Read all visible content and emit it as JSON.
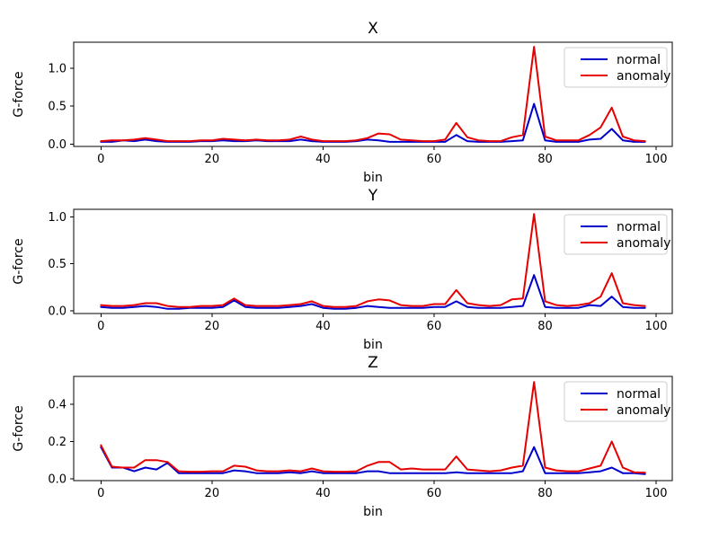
{
  "figure": {
    "background": "#ffffff",
    "text_color": "#000000",
    "spine_color": "#000000",
    "legend_border_color": "#cccccc",
    "legend_background": "#ffffff"
  },
  "chart_data": [
    {
      "type": "line",
      "title": "X",
      "xlabel": "bin",
      "ylabel": "G-force",
      "xlim": [
        -4.9,
        102.9
      ],
      "ylim": [
        -0.03,
        1.34
      ],
      "xticks": [
        0,
        20,
        40,
        60,
        80,
        100
      ],
      "xtick_labels": [
        "0",
        "20",
        "40",
        "60",
        "80",
        "100"
      ],
      "yticks": [
        0.0,
        0.5,
        1.0
      ],
      "ytick_labels": [
        "0.0",
        "0.5",
        "1.0"
      ],
      "legend_position": "upper right",
      "grid": false,
      "x": [
        0,
        2,
        4,
        6,
        8,
        10,
        12,
        14,
        16,
        18,
        20,
        22,
        24,
        26,
        28,
        30,
        32,
        34,
        36,
        38,
        40,
        42,
        44,
        46,
        48,
        50,
        52,
        54,
        56,
        58,
        60,
        62,
        64,
        66,
        68,
        70,
        72,
        74,
        76,
        78,
        80,
        82,
        84,
        86,
        88,
        90,
        92,
        94,
        96,
        98
      ],
      "series": [
        {
          "name": "normal",
          "color": "#0000cd",
          "values": [
            0.03,
            0.03,
            0.05,
            0.04,
            0.06,
            0.04,
            0.03,
            0.03,
            0.03,
            0.04,
            0.04,
            0.05,
            0.04,
            0.04,
            0.05,
            0.04,
            0.04,
            0.04,
            0.06,
            0.04,
            0.03,
            0.03,
            0.03,
            0.04,
            0.06,
            0.05,
            0.03,
            0.03,
            0.03,
            0.03,
            0.03,
            0.03,
            0.12,
            0.04,
            0.03,
            0.03,
            0.03,
            0.04,
            0.05,
            0.53,
            0.05,
            0.03,
            0.03,
            0.03,
            0.06,
            0.07,
            0.2,
            0.05,
            0.03,
            0.03
          ]
        },
        {
          "name": "anomaly",
          "color": "#e60000",
          "values": [
            0.04,
            0.05,
            0.05,
            0.06,
            0.08,
            0.06,
            0.04,
            0.04,
            0.04,
            0.05,
            0.05,
            0.07,
            0.06,
            0.05,
            0.06,
            0.05,
            0.05,
            0.06,
            0.1,
            0.06,
            0.04,
            0.04,
            0.04,
            0.05,
            0.08,
            0.14,
            0.13,
            0.06,
            0.05,
            0.04,
            0.04,
            0.06,
            0.28,
            0.09,
            0.05,
            0.04,
            0.04,
            0.09,
            0.12,
            1.28,
            0.1,
            0.05,
            0.05,
            0.05,
            0.12,
            0.22,
            0.48,
            0.1,
            0.05,
            0.04
          ]
        }
      ]
    },
    {
      "type": "line",
      "title": "Y",
      "xlabel": "bin",
      "ylabel": "G-force",
      "xlim": [
        -4.9,
        102.9
      ],
      "ylim": [
        -0.03,
        1.08
      ],
      "xticks": [
        0,
        20,
        40,
        60,
        80,
        100
      ],
      "xtick_labels": [
        "0",
        "20",
        "40",
        "60",
        "80",
        "100"
      ],
      "yticks": [
        0.0,
        0.5,
        1.0
      ],
      "ytick_labels": [
        "0.0",
        "0.5",
        "1.0"
      ],
      "legend_position": "upper right",
      "grid": false,
      "x": [
        0,
        2,
        4,
        6,
        8,
        10,
        12,
        14,
        16,
        18,
        20,
        22,
        24,
        26,
        28,
        30,
        32,
        34,
        36,
        38,
        40,
        42,
        44,
        46,
        48,
        50,
        52,
        54,
        56,
        58,
        60,
        62,
        64,
        66,
        68,
        70,
        72,
        74,
        76,
        78,
        80,
        82,
        84,
        86,
        88,
        90,
        92,
        94,
        96,
        98
      ],
      "series": [
        {
          "name": "normal",
          "color": "#0000cd",
          "values": [
            0.04,
            0.03,
            0.03,
            0.04,
            0.05,
            0.04,
            0.02,
            0.02,
            0.03,
            0.03,
            0.03,
            0.04,
            0.11,
            0.04,
            0.03,
            0.03,
            0.03,
            0.04,
            0.05,
            0.07,
            0.03,
            0.02,
            0.02,
            0.03,
            0.05,
            0.04,
            0.03,
            0.03,
            0.03,
            0.03,
            0.04,
            0.04,
            0.1,
            0.04,
            0.03,
            0.03,
            0.03,
            0.04,
            0.05,
            0.38,
            0.04,
            0.03,
            0.03,
            0.03,
            0.06,
            0.05,
            0.15,
            0.04,
            0.03,
            0.03
          ]
        },
        {
          "name": "anomaly",
          "color": "#e60000",
          "values": [
            0.06,
            0.05,
            0.05,
            0.06,
            0.08,
            0.08,
            0.05,
            0.04,
            0.04,
            0.05,
            0.05,
            0.06,
            0.13,
            0.06,
            0.05,
            0.05,
            0.05,
            0.06,
            0.07,
            0.1,
            0.05,
            0.04,
            0.04,
            0.05,
            0.1,
            0.12,
            0.11,
            0.06,
            0.05,
            0.05,
            0.07,
            0.07,
            0.22,
            0.08,
            0.06,
            0.05,
            0.06,
            0.12,
            0.13,
            1.03,
            0.1,
            0.06,
            0.05,
            0.06,
            0.08,
            0.15,
            0.4,
            0.08,
            0.06,
            0.05
          ]
        }
      ]
    },
    {
      "type": "line",
      "title": "Z",
      "xlabel": "bin",
      "ylabel": "G-force",
      "xlim": [
        -4.9,
        102.9
      ],
      "ylim": [
        -0.01,
        0.55
      ],
      "xticks": [
        0,
        20,
        40,
        60,
        80,
        100
      ],
      "xtick_labels": [
        "0",
        "20",
        "40",
        "60",
        "80",
        "100"
      ],
      "yticks": [
        0.0,
        0.2,
        0.4
      ],
      "ytick_labels": [
        "0.0",
        "0.2",
        "0.4"
      ],
      "legend_position": "upper right",
      "grid": false,
      "x": [
        0,
        2,
        4,
        6,
        8,
        10,
        12,
        14,
        16,
        18,
        20,
        22,
        24,
        26,
        28,
        30,
        32,
        34,
        36,
        38,
        40,
        42,
        44,
        46,
        48,
        50,
        52,
        54,
        56,
        58,
        60,
        62,
        64,
        66,
        68,
        70,
        72,
        74,
        76,
        78,
        80,
        82,
        84,
        86,
        88,
        90,
        92,
        94,
        96,
        98
      ],
      "series": [
        {
          "name": "normal",
          "color": "#0000cd",
          "values": [
            0.17,
            0.06,
            0.06,
            0.04,
            0.06,
            0.05,
            0.085,
            0.03,
            0.03,
            0.03,
            0.03,
            0.03,
            0.045,
            0.04,
            0.03,
            0.03,
            0.03,
            0.035,
            0.03,
            0.04,
            0.03,
            0.03,
            0.03,
            0.03,
            0.04,
            0.04,
            0.03,
            0.03,
            0.03,
            0.03,
            0.03,
            0.03,
            0.035,
            0.03,
            0.03,
            0.03,
            0.03,
            0.03,
            0.04,
            0.17,
            0.03,
            0.03,
            0.03,
            0.03,
            0.035,
            0.04,
            0.06,
            0.03,
            0.03,
            0.025
          ]
        },
        {
          "name": "anomaly",
          "color": "#e60000",
          "values": [
            0.18,
            0.065,
            0.06,
            0.06,
            0.1,
            0.1,
            0.09,
            0.04,
            0.038,
            0.038,
            0.04,
            0.04,
            0.07,
            0.065,
            0.045,
            0.04,
            0.04,
            0.045,
            0.04,
            0.055,
            0.04,
            0.038,
            0.038,
            0.04,
            0.07,
            0.09,
            0.09,
            0.05,
            0.055,
            0.05,
            0.05,
            0.05,
            0.12,
            0.05,
            0.045,
            0.04,
            0.045,
            0.06,
            0.07,
            0.52,
            0.06,
            0.045,
            0.04,
            0.04,
            0.055,
            0.07,
            0.2,
            0.06,
            0.035,
            0.033
          ]
        }
      ]
    }
  ]
}
